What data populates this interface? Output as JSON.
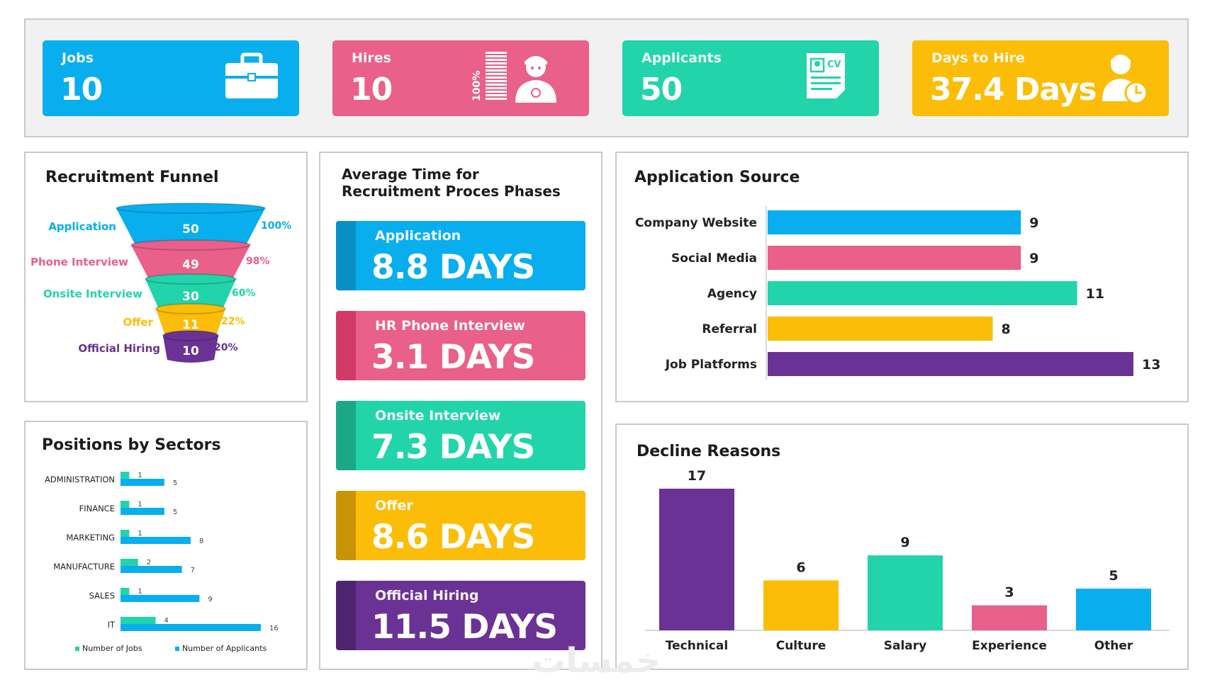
{
  "colors": {
    "blue": "#08aeee",
    "pink": "#e9608a",
    "teal": "#22d4aa",
    "yellow": "#fbbd08",
    "purple": "#6a3295"
  },
  "kpis": [
    {
      "label": "Jobs",
      "value": "10",
      "color": "#08aeee",
      "icon": "briefcase-icon"
    },
    {
      "label": "Hires",
      "value": "10",
      "color": "#e9608a",
      "icon": "hired-person-icon",
      "badge": "100%"
    },
    {
      "label": "Applicants",
      "value": "50",
      "color": "#22d4aa",
      "icon": "cv-document-icon"
    },
    {
      "label": "Days to Hire",
      "value": "37.4 Days",
      "color": "#fbbd08",
      "icon": "person-clock-icon"
    }
  ],
  "funnel": {
    "title": "Recruitment Funnel",
    "stages": [
      {
        "label": "Application",
        "value": "50",
        "pct": "100%",
        "color": "#08aeee"
      },
      {
        "label": "Phone Interview",
        "value": "49",
        "pct": "98%",
        "color": "#e9608a"
      },
      {
        "label": "Onsite Interview",
        "value": "30",
        "pct": "60%",
        "color": "#22d4aa"
      },
      {
        "label": "Offer",
        "value": "11",
        "pct": "22%",
        "color": "#fbbd08"
      },
      {
        "label": "Official Hiring",
        "value": "10",
        "pct": "20%",
        "color": "#6a3295"
      }
    ]
  },
  "phases": {
    "title_line1": "Average Time for",
    "title_line2": "Recruitment Proces Phases",
    "items": [
      {
        "label": "Application",
        "value": "8.8 DAYS",
        "color": "#08aeee",
        "dark": "#0a8fc4"
      },
      {
        "label": "HR Phone Interview",
        "value": "3.1 DAYS",
        "color": "#e9608a",
        "dark": "#d13a66"
      },
      {
        "label": "Onsite Interview",
        "value": "7.3 DAYS",
        "color": "#22d4aa",
        "dark": "#1ba886"
      },
      {
        "label": "Offer",
        "value": "8.6 DAYS",
        "color": "#fbbd08",
        "dark": "#c89406"
      },
      {
        "label": "Official Hiring",
        "value": "11.5 DAYS",
        "color": "#6a3295",
        "dark": "#4e2370"
      }
    ]
  },
  "chart_data": [
    {
      "id": "application_source",
      "type": "bar",
      "orientation": "horizontal",
      "title": "Application Source",
      "categories": [
        "Company Website",
        "Social Media",
        "Agency",
        "Referral",
        "Job Platforms"
      ],
      "values": [
        9,
        9,
        11,
        8,
        13
      ],
      "colors": [
        "#08aeee",
        "#e9608a",
        "#22d4aa",
        "#fbbd08",
        "#6a3295"
      ],
      "xlim": [
        0,
        13
      ]
    },
    {
      "id": "decline_reasons",
      "type": "bar",
      "title": "Decline Reasons",
      "categories": [
        "Technical",
        "Culture",
        "Salary",
        "Experience",
        "Other"
      ],
      "values": [
        17,
        6,
        9,
        3,
        5
      ],
      "colors": [
        "#6a3295",
        "#fbbd08",
        "#22d4aa",
        "#e9608a",
        "#08aeee"
      ],
      "ylim": [
        0,
        17
      ]
    },
    {
      "id": "positions_by_sectors",
      "type": "bar",
      "orientation": "horizontal",
      "title": "Positions by Sectors",
      "categories": [
        "ADMINISTRATION",
        "FINANCE",
        "MARKETING",
        "MANUFACTURE",
        "SALES",
        "IT"
      ],
      "series": [
        {
          "name": "Number of Jobs",
          "values": [
            1,
            1,
            1,
            2,
            1,
            4
          ],
          "color": "#22d4aa"
        },
        {
          "name": "Number of Applicants",
          "values": [
            5,
            5,
            8,
            7,
            9,
            16
          ],
          "color": "#08aeee"
        }
      ],
      "xlim": [
        0,
        16
      ],
      "legend": "bottom"
    }
  ],
  "watermark": "خمسات"
}
